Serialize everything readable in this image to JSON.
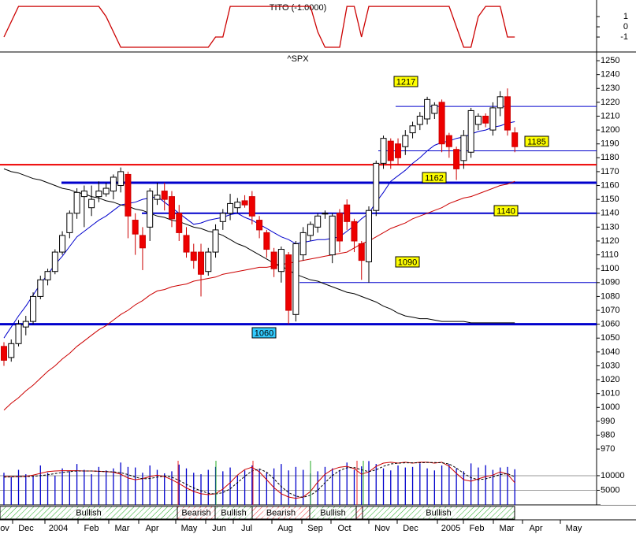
{
  "chart_data": [
    {
      "type": "line",
      "title": "TITO (-1.0000)",
      "series": [
        {
          "color": "#cc0000",
          "values": [
            -1,
            0.5,
            2,
            2,
            2,
            2,
            2,
            2,
            2,
            2,
            2,
            2,
            2,
            2,
            1,
            -0.5,
            -2,
            -2,
            -2,
            -2,
            -2,
            -2,
            -2,
            -2,
            -2,
            -2,
            -2,
            -2,
            -2,
            -1,
            -1,
            2,
            2,
            2,
            2,
            2,
            2,
            2,
            2,
            2,
            2,
            2,
            2,
            -0.5,
            -2,
            -2,
            -2,
            2,
            2,
            -1,
            2,
            2,
            2,
            2,
            2,
            2,
            2,
            2,
            2,
            2,
            2,
            2,
            0,
            -2,
            -2,
            1,
            2,
            2,
            2,
            -1,
            -1
          ]
        }
      ],
      "ylim": [
        -2.46,
        2.62
      ],
      "yticks": [
        1,
        0,
        -1
      ]
    },
    {
      "type": "candlestick",
      "title": "^SPX",
      "up_color": "#ffffff",
      "down_color": "#ee0000",
      "open": [
        1044,
        1036,
        1046,
        1058,
        1062,
        1080,
        1092,
        1098,
        1112,
        1126,
        1140,
        1152,
        1144,
        1152,
        1154,
        1156,
        1160,
        1168,
        1135,
        1124,
        1130,
        1150,
        1156,
        1152,
        1140,
        1124,
        1112,
        1112,
        1098,
        1112,
        1134,
        1140,
        1144,
        1149,
        1152,
        1135,
        1126,
        1112,
        1098,
        1110,
        1067,
        1110,
        1124,
        1130,
        1140,
        1110,
        1140,
        1146,
        1134,
        1118,
        1105,
        1142,
        1176,
        1192,
        1190,
        1188,
        1198,
        1204,
        1208,
        1212,
        1220,
        1196,
        1186,
        1178,
        1184,
        1204,
        1210,
        1200,
        1216,
        1224,
        1198
      ],
      "high": [
        1047,
        1049,
        1063,
        1066,
        1083,
        1095,
        1100,
        1114,
        1127,
        1142,
        1158,
        1160,
        1160,
        1163,
        1162,
        1168,
        1173,
        1170,
        1140,
        1130,
        1158,
        1162,
        1162,
        1156,
        1146,
        1130,
        1118,
        1118,
        1115,
        1132,
        1143,
        1154,
        1151,
        1153,
        1156,
        1138,
        1128,
        1115,
        1116,
        1112,
        1120,
        1130,
        1134,
        1140,
        1142,
        1140,
        1143,
        1150,
        1136,
        1120,
        1145,
        1178,
        1196,
        1194,
        1194,
        1200,
        1206,
        1213,
        1224,
        1220,
        1222,
        1198,
        1188,
        1200,
        1216,
        1212,
        1212,
        1220,
        1228,
        1230,
        1202
      ],
      "low": [
        1030,
        1033,
        1044,
        1052,
        1060,
        1078,
        1088,
        1096,
        1110,
        1122,
        1136,
        1130,
        1138,
        1148,
        1152,
        1150,
        1155,
        1122,
        1110,
        1099,
        1120,
        1146,
        1142,
        1130,
        1120,
        1108,
        1100,
        1080,
        1095,
        1108,
        1128,
        1135,
        1140,
        1144,
        1132,
        1122,
        1108,
        1094,
        1090,
        1060,
        1062,
        1106,
        1120,
        1126,
        1136,
        1104,
        1112,
        1128,
        1112,
        1092,
        1090,
        1138,
        1172,
        1172,
        1175,
        1182,
        1194,
        1200,
        1204,
        1208,
        1184,
        1180,
        1164,
        1172,
        1180,
        1200,
        1202,
        1196,
        1210,
        1196,
        1184
      ],
      "close": [
        1034,
        1046,
        1060,
        1062,
        1080,
        1092,
        1098,
        1112,
        1124,
        1140,
        1155,
        1156,
        1150,
        1156,
        1158,
        1166,
        1170,
        1138,
        1125,
        1115,
        1156,
        1153,
        1150,
        1136,
        1126,
        1112,
        1106,
        1096,
        1112,
        1128,
        1140,
        1147,
        1148,
        1146,
        1138,
        1128,
        1114,
        1100,
        1114,
        1070,
        1118,
        1126,
        1132,
        1138,
        1140,
        1138,
        1120,
        1134,
        1120,
        1106,
        1142,
        1176,
        1194,
        1178,
        1180,
        1196,
        1203,
        1210,
        1222,
        1218,
        1190,
        1188,
        1172,
        1196,
        1214,
        1210,
        1205,
        1216,
        1224,
        1200,
        1188
      ],
      "lines": [
        {
          "color": "#0000cc",
          "values": [
            1050,
            1058,
            1066,
            1073,
            1081,
            1089,
            1096,
            1103,
            1109,
            1116,
            1123,
            1127,
            1131,
            1135,
            1138,
            1142,
            1146,
            1147,
            1148,
            1150,
            1151,
            1152,
            1148,
            1144,
            1140,
            1136,
            1132,
            1133,
            1135,
            1136,
            1137,
            1139,
            1140,
            1137,
            1135,
            1132,
            1129,
            1126,
            1123,
            1121,
            1118,
            1119,
            1120,
            1121,
            1121,
            1122,
            1123,
            1127,
            1131,
            1136,
            1140,
            1148,
            1155,
            1163,
            1167,
            1171,
            1176,
            1180,
            1185,
            1189,
            1191,
            1192,
            1194,
            1195,
            1197,
            1199,
            1200,
            1202,
            1203,
            1205,
            1206
          ]
        },
        {
          "color": "#cc0000",
          "values": [
            998,
            1003,
            1007,
            1012,
            1016,
            1021,
            1026,
            1030,
            1035,
            1039,
            1044,
            1048,
            1052,
            1056,
            1059,
            1063,
            1067,
            1070,
            1074,
            1077,
            1081,
            1084,
            1085,
            1087,
            1088,
            1089,
            1091,
            1092,
            1093,
            1094,
            1096,
            1097,
            1098,
            1099,
            1100,
            1101,
            1101,
            1102,
            1103,
            1104,
            1105,
            1106,
            1107,
            1108,
            1109,
            1110,
            1111,
            1112,
            1115,
            1118,
            1120,
            1123,
            1126,
            1129,
            1131,
            1133,
            1136,
            1138,
            1140,
            1142,
            1144,
            1147,
            1149,
            1151,
            1152,
            1154,
            1156,
            1158,
            1160,
            1161,
            1163
          ]
        },
        {
          "color": "#000000",
          "values": [
            1172,
            1170,
            1169,
            1167,
            1165,
            1164,
            1162,
            1160,
            1158,
            1157,
            1155,
            1154,
            1152,
            1151,
            1149,
            1148,
            1146,
            1145,
            1143,
            1142,
            1140,
            1138,
            1137,
            1135,
            1134,
            1132,
            1130,
            1129,
            1127,
            1126,
            1124,
            1121,
            1118,
            1116,
            1113,
            1110,
            1107,
            1104,
            1102,
            1099,
            1096,
            1094,
            1092,
            1091,
            1089,
            1087,
            1085,
            1083,
            1082,
            1080,
            1078,
            1076,
            1073,
            1071,
            1068,
            1066,
            1065,
            1064,
            1064,
            1063,
            1062,
            1062,
            1062,
            1062,
            1061,
            1061,
            1061,
            1061,
            1061,
            1061,
            1061
          ]
        }
      ],
      "levels": [
        {
          "value": 1217,
          "color": "#0000cc",
          "label_fill": "#ffff00"
        },
        {
          "value": 1185,
          "color": "#0000cc",
          "label_fill": "#ffff00"
        },
        {
          "value": 1175,
          "color": "#ee0000"
        },
        {
          "value": 1162,
          "color": "#0000cc",
          "label_fill": "#ffff00"
        },
        {
          "value": 1140,
          "color": "#0000cc",
          "label_fill": "#ffff00"
        },
        {
          "value": 1090,
          "color": "#0000cc",
          "label_fill": "#ffff00"
        },
        {
          "value": 1060,
          "color": "#0000cc",
          "label_fill": "#33ccff"
        }
      ],
      "ylim": [
        966.1,
        1255.7
      ],
      "yticks": [
        1250,
        1240,
        1230,
        1220,
        1210,
        1200,
        1190,
        1180,
        1170,
        1160,
        1150,
        1140,
        1130,
        1120,
        1110,
        1100,
        1090,
        1080,
        1070,
        1060,
        1050,
        1040,
        1030,
        1020,
        1010,
        1000,
        990,
        980,
        970
      ]
    },
    {
      "type": "bar",
      "series": [
        {
          "color": "#0000cc",
          "values": [
            11000,
            9500,
            12000,
            10500,
            9800,
            13500,
            11000,
            10000,
            12500,
            11500,
            14000,
            12000,
            10500,
            13000,
            11800,
            12500,
            14500,
            13000,
            12800,
            11000,
            13500,
            12000,
            10800,
            11500,
            13800,
            12500,
            11000,
            10500,
            12000,
            13000,
            11500,
            12800,
            10000,
            11800,
            13500,
            12200,
            11000,
            12500,
            14000,
            11800,
            13000,
            12000,
            10800,
            11500,
            13000,
            12500,
            11800,
            14500,
            12000,
            13200,
            15000,
            14000,
            12500,
            11800,
            13500,
            12800,
            13000,
            14200,
            12500,
            11800,
            13500,
            14000,
            12600,
            11500,
            14200,
            12800,
            13600,
            12000,
            12800,
            13000,
            12200
          ]
        },
        {
          "type": "line",
          "color": "#cc0000",
          "values": [
            9700,
            9700,
            9700,
            9800,
            10200,
            10800,
            11400,
            11600,
            11700,
            11700,
            11700,
            11600,
            11600,
            11500,
            11400,
            11200,
            10500,
            9200,
            8600,
            9000,
            9700,
            10200,
            9700,
            8600,
            7300,
            5800,
            4600,
            3800,
            3500,
            3800,
            5400,
            7600,
            10200,
            12100,
            12900,
            11300,
            8600,
            5900,
            3800,
            2700,
            2200,
            2700,
            4600,
            7800,
            10500,
            12100,
            12900,
            13200,
            12400,
            10500,
            11300,
            13200,
            14300,
            14600,
            14300,
            14600,
            14300,
            14600,
            14600,
            14300,
            14600,
            13200,
            10800,
            8600,
            8100,
            8900,
            9700,
            10200,
            11300,
            10500,
            7600
          ]
        },
        {
          "type": "line",
          "color": "#000000",
          "dashed": true,
          "values": [
            9500,
            9600,
            9700,
            9700,
            9800,
            10000,
            10300,
            10700,
            11100,
            11400,
            11600,
            11600,
            11600,
            11500,
            11400,
            11300,
            11000,
            10400,
            9500,
            8900,
            9000,
            9500,
            9900,
            9500,
            8400,
            7000,
            5800,
            4800,
            4000,
            3700,
            4200,
            5500,
            7600,
            9800,
            11600,
            12300,
            11200,
            8900,
            6300,
            4200,
            3000,
            2600,
            3300,
            5000,
            7600,
            10000,
            11800,
            12700,
            12800,
            12000,
            11400,
            12000,
            13200,
            14000,
            14300,
            14400,
            14400,
            14400,
            14500,
            14500,
            14400,
            14000,
            12600,
            10800,
            9300,
            8600,
            8900,
            9600,
            10400,
            10700,
            9600
          ]
        }
      ],
      "ylim": [
        0,
        17000
      ],
      "yticks": [
        10000,
        5000
      ],
      "signals": [
        {
          "label": "Bullish",
          "color": "#22aa22"
        },
        {
          "label": "Bearish",
          "color": "#ee2222"
        },
        {
          "label": "Bullish",
          "color": "#22aa22"
        },
        {
          "label": "Bearish",
          "color": "#ee2222"
        },
        {
          "label": "Bullish",
          "color": "#22aa22"
        },
        {
          "label": null,
          "color": "#ee2222"
        },
        {
          "label": "Bullish",
          "color": "#22aa22"
        }
      ],
      "x_labels": [
        "ov",
        "Dec",
        "2004",
        "Feb",
        "Mar",
        "Apr",
        "May",
        "Jun",
        "Jul",
        "Aug",
        "Sep",
        "Oct",
        "Nov",
        "Dec",
        "2005",
        "Feb",
        "Mar",
        "Apr",
        "May"
      ]
    }
  ]
}
